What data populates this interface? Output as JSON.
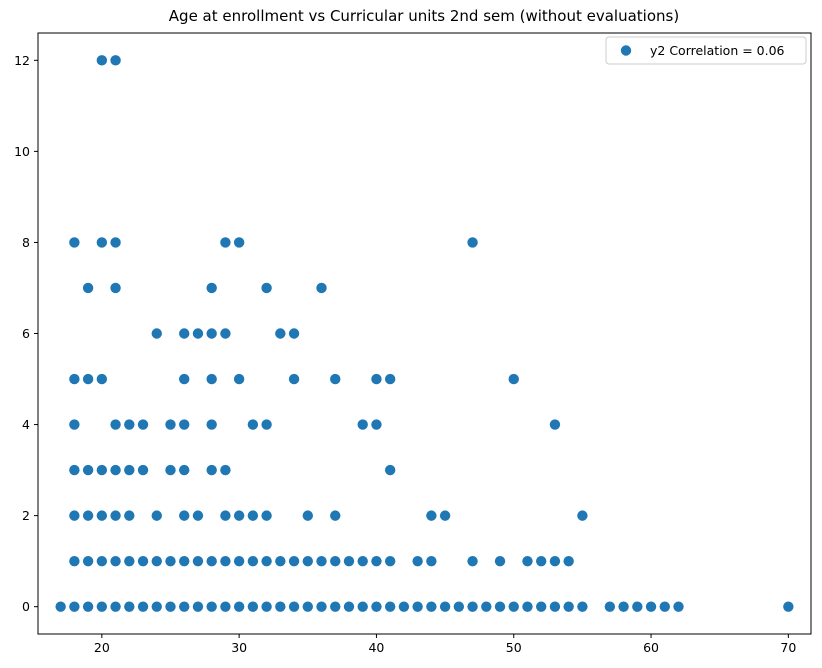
{
  "chart_data": {
    "type": "scatter",
    "title": "Age at enrollment vs Curricular units 2nd sem (without evaluations)",
    "xlabel": "",
    "ylabel": "",
    "xlim": [
      15.35,
      71.65
    ],
    "ylim": [
      -0.6,
      12.6
    ],
    "xticks": [
      20,
      30,
      40,
      50,
      60,
      70
    ],
    "yticks": [
      0,
      2,
      4,
      6,
      8,
      10,
      12
    ],
    "grid": false,
    "legend_position": "top-right",
    "color": "#1f77b4",
    "series": [
      {
        "name": "y2 Correlation = 0.06",
        "points": [
          [
            20,
            12
          ],
          [
            21,
            12
          ],
          [
            18,
            8
          ],
          [
            20,
            8
          ],
          [
            21,
            8
          ],
          [
            29,
            8
          ],
          [
            30,
            8
          ],
          [
            47,
            8
          ],
          [
            19,
            7
          ],
          [
            21,
            7
          ],
          [
            28,
            7
          ],
          [
            32,
            7
          ],
          [
            36,
            7
          ],
          [
            24,
            6
          ],
          [
            26,
            6
          ],
          [
            27,
            6
          ],
          [
            28,
            6
          ],
          [
            29,
            6
          ],
          [
            33,
            6
          ],
          [
            34,
            6
          ],
          [
            18,
            5
          ],
          [
            19,
            5
          ],
          [
            20,
            5
          ],
          [
            26,
            5
          ],
          [
            28,
            5
          ],
          [
            30,
            5
          ],
          [
            34,
            5
          ],
          [
            37,
            5
          ],
          [
            40,
            5
          ],
          [
            41,
            5
          ],
          [
            50,
            5
          ],
          [
            18,
            4
          ],
          [
            21,
            4
          ],
          [
            22,
            4
          ],
          [
            23,
            4
          ],
          [
            25,
            4
          ],
          [
            26,
            4
          ],
          [
            28,
            4
          ],
          [
            31,
            4
          ],
          [
            32,
            4
          ],
          [
            39,
            4
          ],
          [
            40,
            4
          ],
          [
            53,
            4
          ],
          [
            18,
            3
          ],
          [
            19,
            3
          ],
          [
            20,
            3
          ],
          [
            21,
            3
          ],
          [
            22,
            3
          ],
          [
            23,
            3
          ],
          [
            25,
            3
          ],
          [
            26,
            3
          ],
          [
            28,
            3
          ],
          [
            29,
            3
          ],
          [
            41,
            3
          ],
          [
            18,
            2
          ],
          [
            19,
            2
          ],
          [
            20,
            2
          ],
          [
            21,
            2
          ],
          [
            22,
            2
          ],
          [
            24,
            2
          ],
          [
            26,
            2
          ],
          [
            27,
            2
          ],
          [
            29,
            2
          ],
          [
            30,
            2
          ],
          [
            31,
            2
          ],
          [
            32,
            2
          ],
          [
            35,
            2
          ],
          [
            37,
            2
          ],
          [
            44,
            2
          ],
          [
            45,
            2
          ],
          [
            55,
            2
          ],
          [
            18,
            1
          ],
          [
            19,
            1
          ],
          [
            20,
            1
          ],
          [
            21,
            1
          ],
          [
            22,
            1
          ],
          [
            23,
            1
          ],
          [
            24,
            1
          ],
          [
            25,
            1
          ],
          [
            26,
            1
          ],
          [
            27,
            1
          ],
          [
            28,
            1
          ],
          [
            29,
            1
          ],
          [
            30,
            1
          ],
          [
            31,
            1
          ],
          [
            32,
            1
          ],
          [
            33,
            1
          ],
          [
            34,
            1
          ],
          [
            35,
            1
          ],
          [
            36,
            1
          ],
          [
            37,
            1
          ],
          [
            38,
            1
          ],
          [
            39,
            1
          ],
          [
            40,
            1
          ],
          [
            41,
            1
          ],
          [
            43,
            1
          ],
          [
            44,
            1
          ],
          [
            47,
            1
          ],
          [
            49,
            1
          ],
          [
            51,
            1
          ],
          [
            52,
            1
          ],
          [
            53,
            1
          ],
          [
            54,
            1
          ],
          [
            17,
            0
          ],
          [
            18,
            0
          ],
          [
            19,
            0
          ],
          [
            20,
            0
          ],
          [
            21,
            0
          ],
          [
            22,
            0
          ],
          [
            23,
            0
          ],
          [
            24,
            0
          ],
          [
            25,
            0
          ],
          [
            26,
            0
          ],
          [
            27,
            0
          ],
          [
            28,
            0
          ],
          [
            29,
            0
          ],
          [
            30,
            0
          ],
          [
            31,
            0
          ],
          [
            32,
            0
          ],
          [
            33,
            0
          ],
          [
            34,
            0
          ],
          [
            35,
            0
          ],
          [
            36,
            0
          ],
          [
            37,
            0
          ],
          [
            38,
            0
          ],
          [
            39,
            0
          ],
          [
            40,
            0
          ],
          [
            41,
            0
          ],
          [
            42,
            0
          ],
          [
            43,
            0
          ],
          [
            44,
            0
          ],
          [
            45,
            0
          ],
          [
            46,
            0
          ],
          [
            47,
            0
          ],
          [
            48,
            0
          ],
          [
            49,
            0
          ],
          [
            50,
            0
          ],
          [
            51,
            0
          ],
          [
            52,
            0
          ],
          [
            53,
            0
          ],
          [
            54,
            0
          ],
          [
            55,
            0
          ],
          [
            57,
            0
          ],
          [
            58,
            0
          ],
          [
            59,
            0
          ],
          [
            60,
            0
          ],
          [
            61,
            0
          ],
          [
            62,
            0
          ],
          [
            70,
            0
          ]
        ]
      }
    ]
  }
}
